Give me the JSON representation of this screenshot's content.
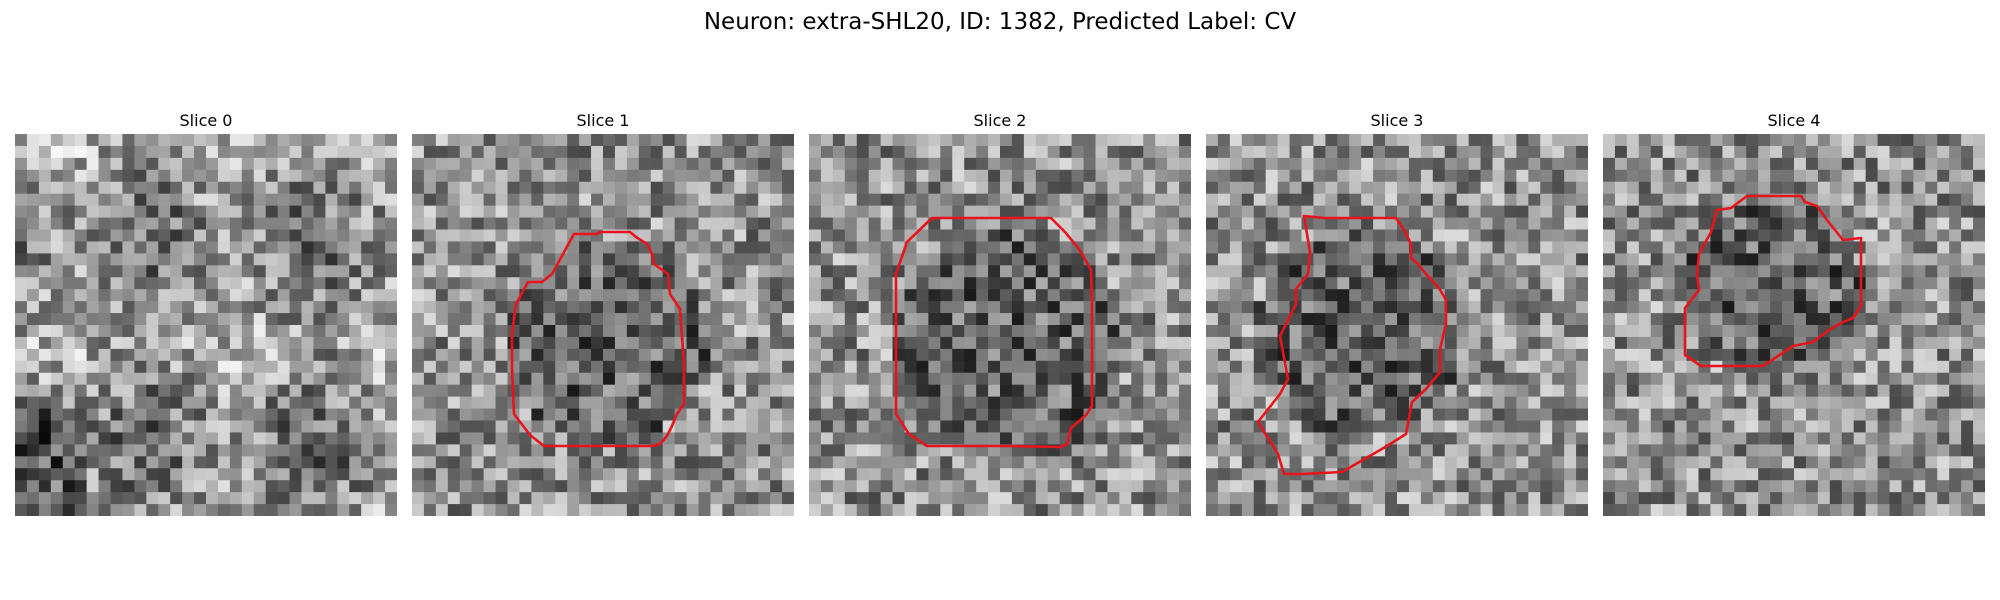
{
  "figure_title": "Neuron: extra-SHL20, ID: 1382, Predicted Label: CV",
  "outline_color": "#e8141b",
  "slices": [
    {
      "title": "Slice 0",
      "has_outline": false
    },
    {
      "title": "Slice 1",
      "has_outline": true
    },
    {
      "title": "Slice 2",
      "has_outline": true
    },
    {
      "title": "Slice 3",
      "has_outline": true
    },
    {
      "title": "Slice 4",
      "has_outline": true
    }
  ]
}
